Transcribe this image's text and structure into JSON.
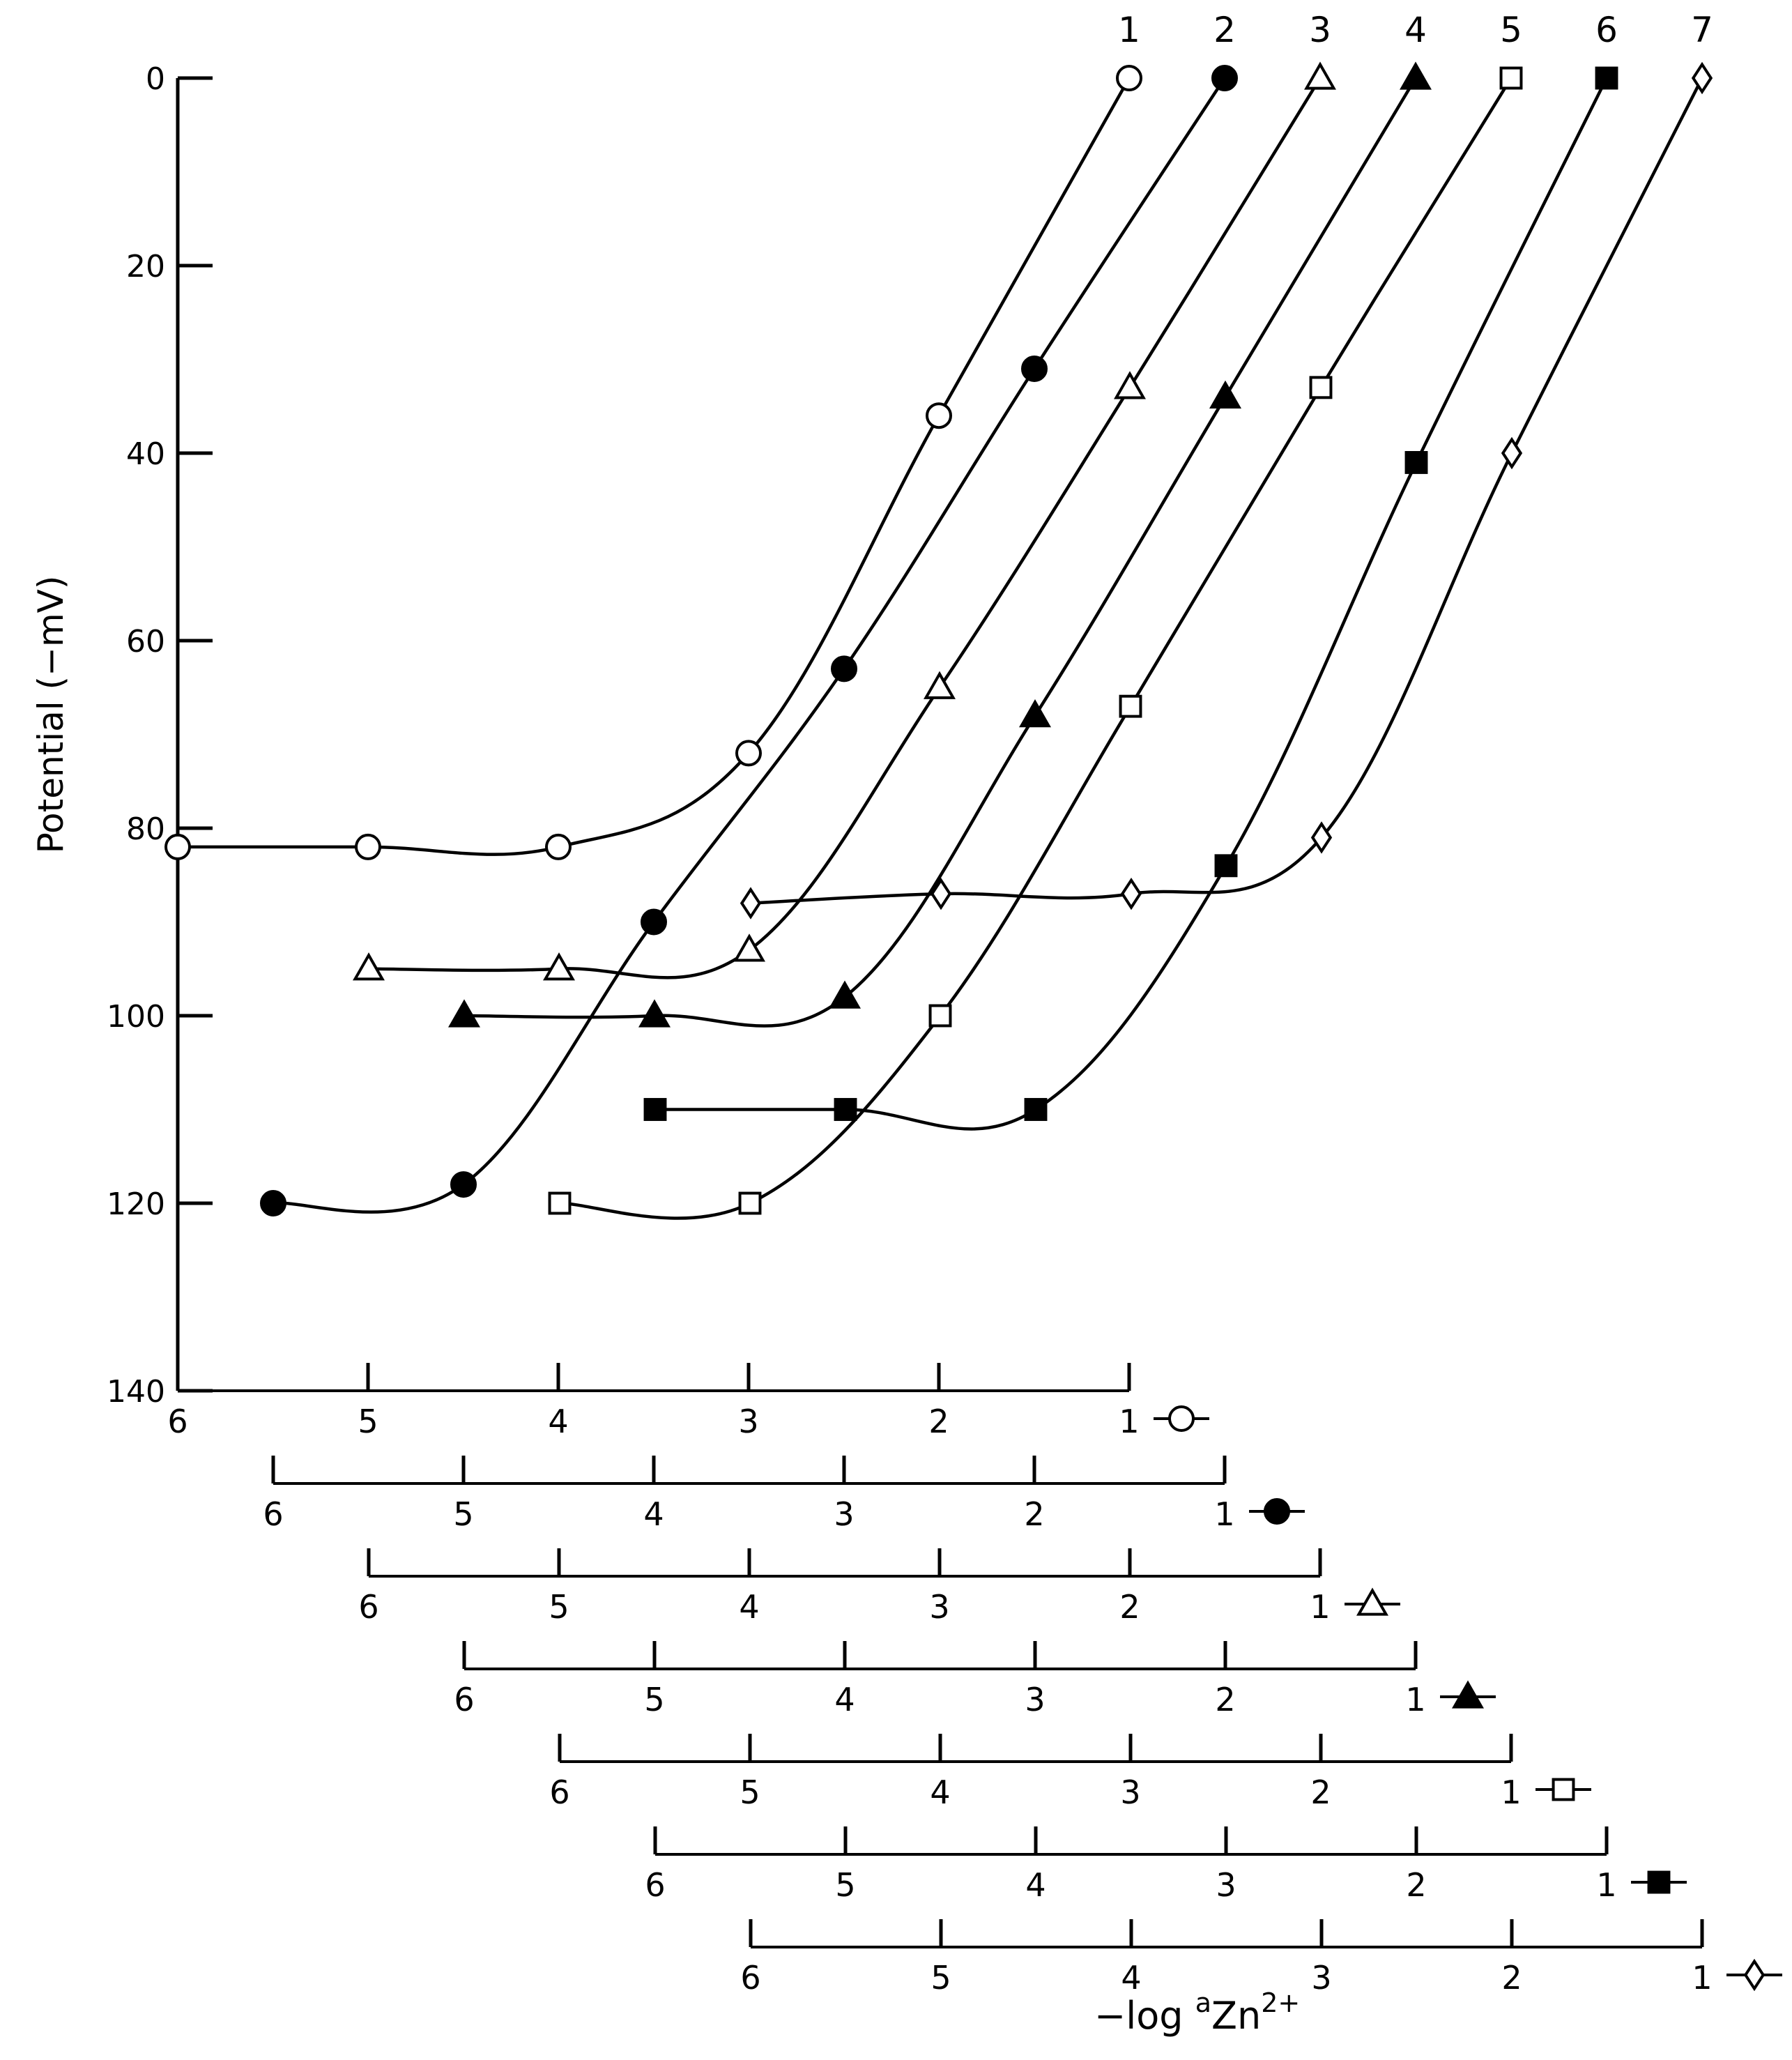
{
  "chart_data": {
    "type": "line",
    "ylabel": "Potential (−mV)",
    "xlabel": {
      "prefix": "−log ",
      "sup_a": "a",
      "base": "Zn",
      "sup_charge": "2+"
    },
    "y_ticks": [
      "0",
      "20",
      "40",
      "60",
      "80",
      "100",
      "120",
      "140"
    ],
    "ylim": [
      0,
      140
    ],
    "y_inverted": true,
    "x_ticks": [
      "6",
      "5",
      "4",
      "3",
      "2",
      "1"
    ],
    "xlim": [
      6,
      1
    ],
    "grid": false,
    "series": [
      {
        "name": "1",
        "marker": "open-circle",
        "x": [
          6,
          5,
          4,
          3,
          2,
          1
        ],
        "y": [
          82,
          82,
          82,
          72,
          36,
          0
        ]
      },
      {
        "name": "2",
        "marker": "filled-circle",
        "x": [
          6,
          5,
          4,
          3,
          2,
          1
        ],
        "y": [
          120,
          118,
          90,
          63,
          31,
          0
        ]
      },
      {
        "name": "3",
        "marker": "open-triangle",
        "x": [
          6,
          5,
          4,
          3,
          2,
          1
        ],
        "y": [
          95,
          95,
          93,
          65,
          33,
          0
        ]
      },
      {
        "name": "4",
        "marker": "filled-triangle",
        "x": [
          6,
          5,
          4,
          3,
          2,
          1
        ],
        "y": [
          100,
          100,
          98,
          68,
          34,
          0
        ]
      },
      {
        "name": "5",
        "marker": "open-square",
        "x": [
          6,
          5,
          4,
          3,
          2,
          1
        ],
        "y": [
          120,
          120,
          100,
          67,
          33,
          0
        ]
      },
      {
        "name": "6",
        "marker": "filled-square",
        "x": [
          6,
          5,
          4,
          3,
          2,
          1
        ],
        "y": [
          110,
          110,
          110,
          84,
          41,
          0
        ]
      },
      {
        "name": "7",
        "marker": "open-diamond",
        "x": [
          6,
          5,
          4,
          3,
          2,
          1
        ],
        "y": [
          88,
          87,
          87,
          81,
          40,
          0
        ]
      }
    ]
  }
}
